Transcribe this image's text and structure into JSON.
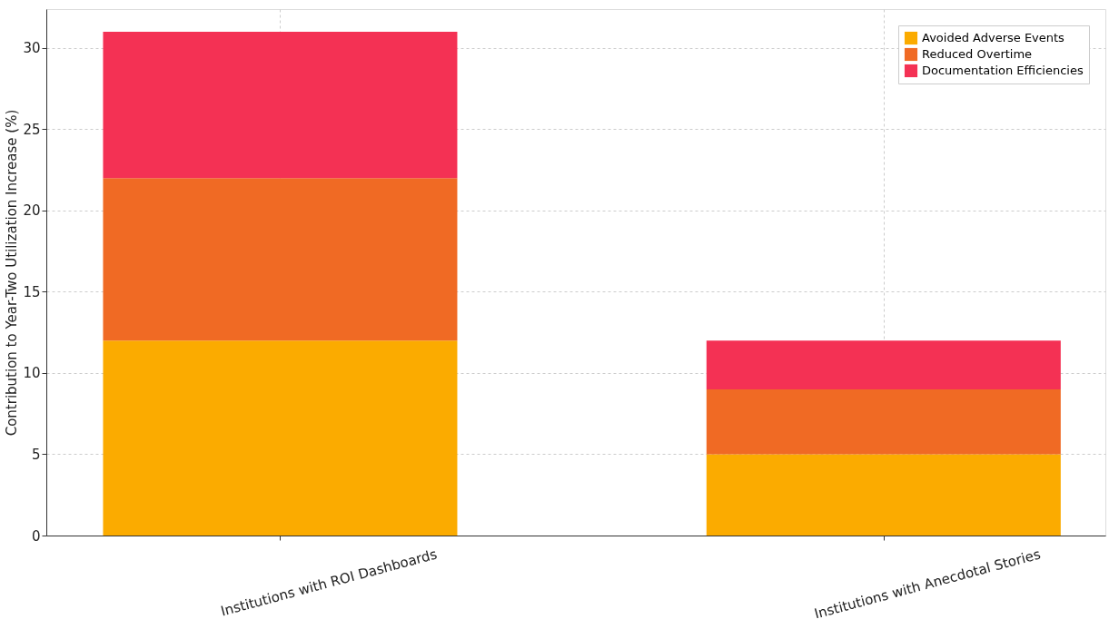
{
  "chart_data": {
    "type": "bar",
    "stacked": true,
    "ylabel": "Contribution to Year-Two Utilization Increase (%)",
    "categories": [
      "Institutions with ROI Dashboards",
      "Institutions with Anecdotal Stories"
    ],
    "series": [
      {
        "name": "Avoided Adverse Events",
        "color": "#fbab00",
        "values": [
          12,
          5
        ]
      },
      {
        "name": "Reduced Overtime",
        "color": "#f06a24",
        "values": [
          10,
          4
        ]
      },
      {
        "name": "Documentation Efficiencies",
        "color": "#f43154",
        "values": [
          9,
          3
        ]
      }
    ],
    "ylim": [
      0,
      32.4
    ],
    "yticks": [
      0,
      5,
      10,
      15,
      20,
      25,
      30
    ],
    "grid": true,
    "legend": "top right"
  }
}
